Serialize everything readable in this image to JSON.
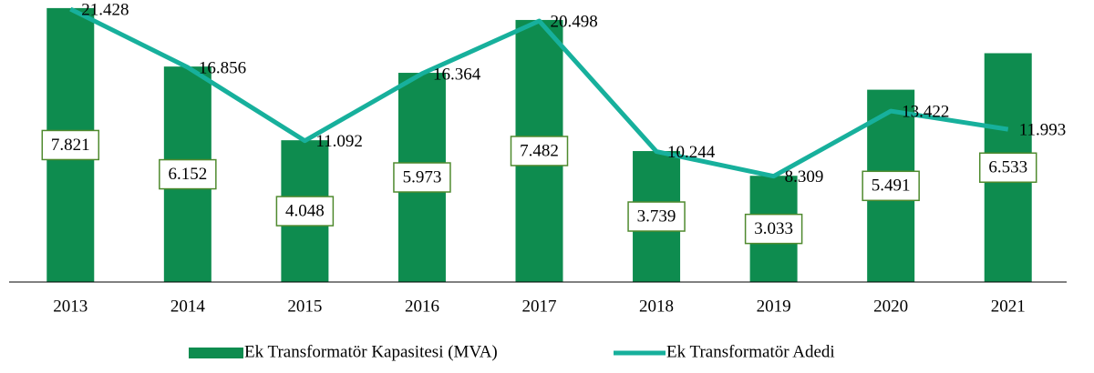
{
  "chart_data": {
    "type": "bar",
    "categories": [
      "2013",
      "2014",
      "2015",
      "2016",
      "2017",
      "2018",
      "2019",
      "2020",
      "2021"
    ],
    "series": [
      {
        "name": "Ek Transformatör Kapasitesi (MVA)",
        "type": "bar",
        "color": "#0e8c4f",
        "values": [
          7821,
          6152,
          4048,
          5973,
          7482,
          3739,
          3033,
          5491,
          6533
        ],
        "value_labels": [
          "7.821",
          "6.152",
          "4.048",
          "5.973",
          "7.482",
          "3.739",
          "3.033",
          "5.491",
          "6.533"
        ]
      },
      {
        "name": "Ek Transformatör Adedi",
        "type": "line",
        "axis": "y2",
        "color": "#17b09c",
        "values": [
          21428,
          16856,
          11092,
          16364,
          20498,
          10244,
          8309,
          13422,
          11993
        ],
        "value_labels": [
          "21.428",
          "16.856",
          "11.092",
          "16.364",
          "20.498",
          "10.244",
          "8.309",
          "13.422",
          "11.993"
        ]
      }
    ],
    "ylim": [
      0,
      8000
    ],
    "y2lim": [
      0,
      22000
    ],
    "legend": "bottom"
  }
}
